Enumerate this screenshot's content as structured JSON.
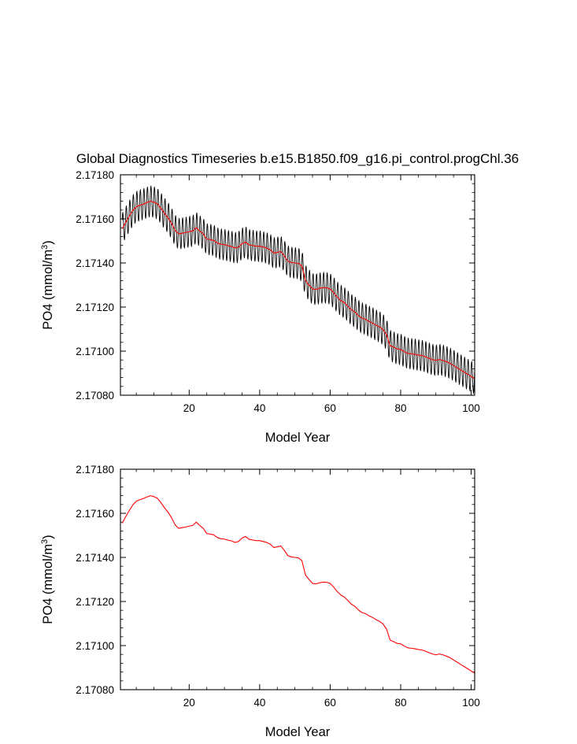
{
  "title": "Global Diagnostics Timeseries b.e15.B1850.f09_g16.pi_control.progChl.36",
  "colors": {
    "monthly": "#000000",
    "annual": "#ff0000",
    "axes": "#000000"
  },
  "chart_data": [
    {
      "type": "line",
      "panel": "top",
      "xlabel": "Model Year",
      "ylabel_prefix": "PO4 (mmol/m",
      "ylabel_exp": "3",
      "ylabel_suffix": ")",
      "xlim": [
        0.5,
        101
      ],
      "ylim": [
        2.1708,
        2.1718
      ],
      "xticks": [
        20,
        40,
        60,
        80,
        100
      ],
      "xtick_labels": [
        "20",
        "40",
        "60",
        "80",
        "100"
      ],
      "yticks": [
        2.1708,
        2.171,
        2.1712,
        2.1714,
        2.1716,
        2.1718
      ],
      "ytick_labels": [
        "2.17080",
        "2.17100",
        "2.17120",
        "2.17140",
        "2.17160",
        "2.17180"
      ],
      "series": [
        {
          "name": "monthly",
          "color": "#000000",
          "seasonal_amplitude": 7e-05,
          "derived_from": "annual"
        },
        {
          "name": "annual",
          "color": "#ff0000",
          "ref": "annual_mean"
        }
      ]
    },
    {
      "type": "line",
      "panel": "bottom",
      "xlabel": "Model Year",
      "ylabel_prefix": "PO4 (mmol/m",
      "ylabel_exp": "3",
      "ylabel_suffix": ")",
      "xlim": [
        0.5,
        101
      ],
      "ylim": [
        2.1708,
        2.1718
      ],
      "xticks": [
        20,
        40,
        60,
        80,
        100
      ],
      "xtick_labels": [
        "20",
        "40",
        "60",
        "80",
        "100"
      ],
      "yticks": [
        2.1708,
        2.171,
        2.1712,
        2.1714,
        2.1716,
        2.1718
      ],
      "ytick_labels": [
        "2.17080",
        "2.17100",
        "2.17120",
        "2.17140",
        "2.17160",
        "2.17180"
      ],
      "series": [
        {
          "name": "annual",
          "color": "#ff0000",
          "ref": "annual_mean"
        }
      ]
    }
  ],
  "annual_mean": {
    "x": [
      1,
      2,
      3,
      4,
      5,
      6,
      7,
      8,
      9,
      10,
      11,
      12,
      13,
      14,
      15,
      16,
      17,
      18,
      19,
      20,
      21,
      22,
      23,
      24,
      25,
      26,
      27,
      28,
      29,
      30,
      31,
      32,
      33,
      34,
      35,
      36,
      37,
      38,
      39,
      40,
      41,
      42,
      43,
      44,
      45,
      46,
      47,
      48,
      49,
      50,
      51,
      52,
      53,
      54,
      55,
      56,
      57,
      58,
      59,
      60,
      61,
      62,
      63,
      64,
      65,
      66,
      67,
      68,
      69,
      70,
      71,
      72,
      73,
      74,
      75,
      76,
      77,
      78,
      79,
      80,
      81,
      82,
      83,
      84,
      85,
      86,
      87,
      88,
      89,
      90,
      91,
      92,
      93,
      94,
      95,
      96,
      97,
      98,
      99,
      100,
      101
    ],
    "y": [
      2.171555,
      2.171585,
      2.171612,
      2.171638,
      2.171655,
      2.171662,
      2.171667,
      2.171674,
      2.17168,
      2.171676,
      2.171668,
      2.171648,
      2.171625,
      2.171605,
      2.17158,
      2.171548,
      2.171532,
      2.171535,
      2.171538,
      2.171542,
      2.171545,
      2.17156,
      2.171545,
      2.171532,
      2.171508,
      2.171506,
      2.171502,
      2.17149,
      2.171485,
      2.171483,
      2.171478,
      2.171475,
      2.171468,
      2.171472,
      2.171488,
      2.171495,
      2.171482,
      2.171479,
      2.171476,
      2.171476,
      2.171472,
      2.171468,
      2.17146,
      2.171445,
      2.171448,
      2.171452,
      2.171432,
      2.171408,
      2.171402,
      2.1714,
      2.171398,
      2.171385,
      2.17132,
      2.1713,
      2.171282,
      2.17128,
      2.171285,
      2.171288,
      2.171287,
      2.171282,
      2.171265,
      2.171245,
      2.17123,
      2.17122,
      2.171205,
      2.171188,
      2.171178,
      2.171162,
      2.17115,
      2.171145,
      2.171135,
      2.171128,
      2.171118,
      2.17111,
      2.171098,
      2.171075,
      2.171025,
      2.171018,
      2.17101,
      2.171008,
      2.170998,
      2.17099,
      2.170988,
      2.170986,
      2.170982,
      2.17098,
      2.170975,
      2.170968,
      2.170962,
      2.170958,
      2.170962,
      2.170958,
      2.170952,
      2.170945,
      2.170935,
      2.170925,
      2.170915,
      2.170905,
      2.170895,
      2.170885,
      2.170875
    ]
  }
}
